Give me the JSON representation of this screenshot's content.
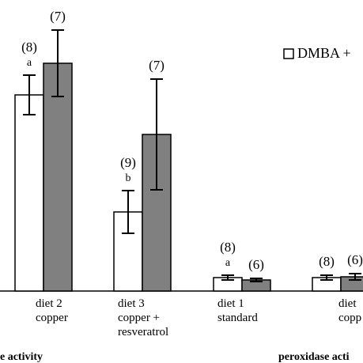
{
  "chart_data": {
    "type": "bar",
    "categories": [
      [
        "diet 2",
        "copper"
      ],
      [
        "diet 3",
        "copper +",
        "resveratrol"
      ],
      [
        "diet 1",
        "standard"
      ],
      [
        "diet",
        "copp"
      ]
    ],
    "series": [
      {
        "name": "DMBA +",
        "color": "#ffffff",
        "values": [
          248,
          100,
          17,
          17
        ],
        "errors": [
          25,
          27,
          3,
          3
        ],
        "labels": [
          "(8)",
          "(9)",
          "(8)",
          "(8)"
        ],
        "letters": [
          "a",
          "b",
          "a",
          null
        ]
      },
      {
        "color": "#808080",
        "values": [
          288,
          198,
          14,
          18
        ],
        "errors": [
          42,
          70,
          2,
          4
        ],
        "labels": [
          "(7)",
          "(7)",
          "(6)",
          "(6)"
        ],
        "letters": [
          null,
          null,
          null,
          null
        ]
      }
    ],
    "group_labels": [
      "e activity",
      "peroxidase acti"
    ],
    "ylim": [
      0,
      368
    ]
  }
}
